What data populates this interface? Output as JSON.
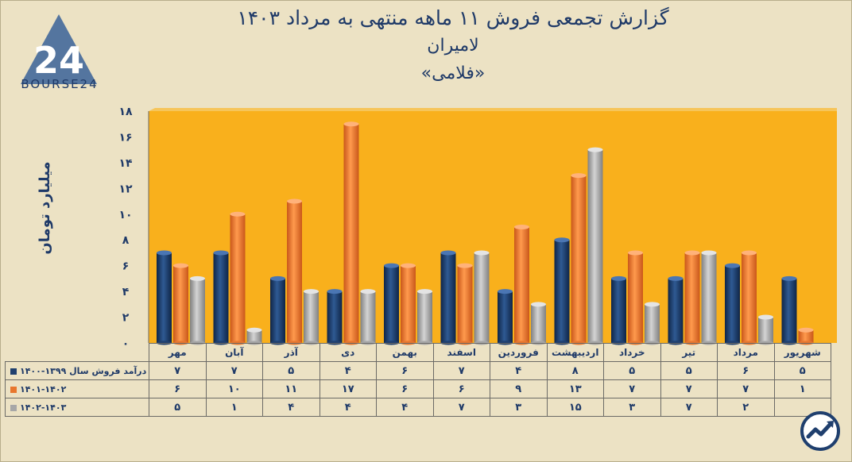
{
  "header": {
    "title": "گزارش تجمعی فروش ۱۱ ماهه منتهی به مرداد ۱۴۰۳",
    "company": "لامیران",
    "symbol": "«فلامی»"
  },
  "logo": {
    "text": "BOURSE24",
    "mark": "24"
  },
  "chart_data": {
    "type": "bar",
    "categories": [
      "مهر",
      "آبان",
      "آذر",
      "دی",
      "بهمن",
      "اسفند",
      "فروردین",
      "اردیبهشت",
      "خرداد",
      "تیر",
      "مرداد",
      "شهریور"
    ],
    "series": [
      {
        "name": "درآمد فروش سال ۱۳۹۹-۱۴۰۰",
        "color": "#1f3f6e",
        "values": [
          7,
          7,
          5,
          4,
          6,
          7,
          4,
          8,
          5,
          5,
          6,
          5
        ]
      },
      {
        "name": "۱۴۰۱-۱۴۰۲",
        "color": "#e8772e",
        "values": [
          6,
          10,
          11,
          17,
          6,
          6,
          9,
          13,
          7,
          7,
          7,
          1
        ]
      },
      {
        "name": "۱۴۰۲-۱۴۰۳",
        "color": "#a7a7a7",
        "values": [
          5,
          1,
          4,
          4,
          4,
          7,
          3,
          15,
          3,
          7,
          2,
          null
        ]
      }
    ],
    "ylabel": "میلیارد تومان",
    "ylim": [
      0,
      18
    ],
    "yticks": [
      "۰",
      "۲",
      "۴",
      "۶",
      "۸",
      "۱۰",
      "۱۲",
      "۱۴",
      "۱۶",
      "۱۸"
    ],
    "grid": false,
    "legend": "data-table",
    "plot_background": "#f9b01c"
  },
  "table": {
    "rows": [
      {
        "label": "درآمد فروش سال ۱۳۹۹-۱۴۰۰",
        "values": [
          "۷",
          "۷",
          "۵",
          "۴",
          "۶",
          "۷",
          "۴",
          "۸",
          "۵",
          "۵",
          "۶",
          "۵"
        ]
      },
      {
        "label": "۱۴۰۱-۱۴۰۲",
        "values": [
          "۶",
          "۱۰",
          "۱۱",
          "۱۷",
          "۶",
          "۶",
          "۹",
          "۱۳",
          "۷",
          "۷",
          "۷",
          "۱"
        ]
      },
      {
        "label": "۱۴۰۲-۱۴۰۳",
        "values": [
          "۵",
          "۱",
          "۴",
          "۴",
          "۴",
          "۷",
          "۳",
          "۱۵",
          "۳",
          "۷",
          "۲",
          ""
        ]
      }
    ]
  },
  "icons": {
    "corner": "trend-up-icon"
  }
}
